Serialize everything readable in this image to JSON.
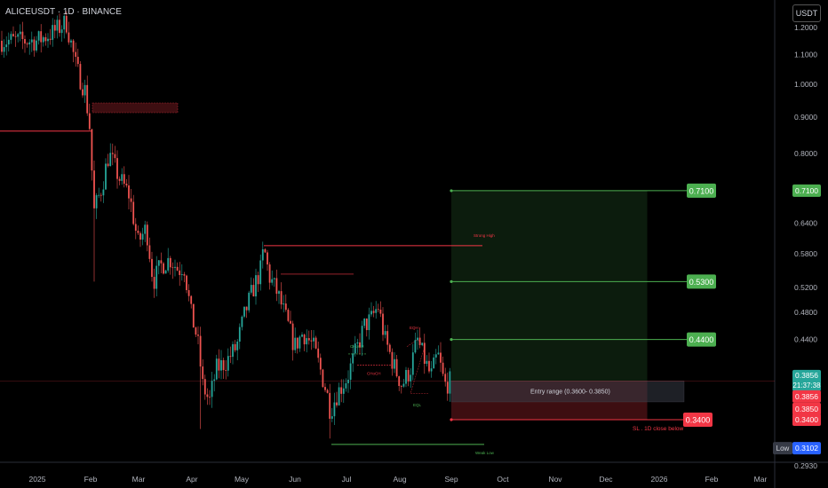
{
  "header": {
    "symbol_line": "ALICEUSDT · 1D · BINANCE",
    "currency_button": "USDT"
  },
  "chart_data": {
    "type": "candlestick",
    "symbol": "ALICEUSDT",
    "interval": "1D",
    "exchange": "BINANCE",
    "y_axis": {
      "scale": "log",
      "range": [
        0.293,
        1.25
      ],
      "ticks": [
        "1.2000",
        "1.1000",
        "1.0000",
        "0.9000",
        "0.8000",
        "0.7100",
        "0.6400",
        "0.5800",
        "0.5200",
        "0.4800",
        "0.4400",
        "0.3850",
        "0.3400",
        "0.3102",
        "0.2930"
      ]
    },
    "x_axis": {
      "labels": [
        "2025",
        "Feb",
        "Mar",
        "Apr",
        "May",
        "Jun",
        "Jul",
        "Aug",
        "Sep",
        "Oct",
        "Nov",
        "Dec",
        "2026",
        "Feb",
        "Mar"
      ]
    },
    "price_path": [
      [
        "2025-01-01",
        1.15
      ],
      [
        "2025-01-10",
        1.18
      ],
      [
        "2025-01-18",
        1.22
      ],
      [
        "2025-01-24",
        1.05
      ],
      [
        "2025-01-29",
        0.98
      ],
      [
        "2025-02-01",
        0.86
      ],
      [
        "2025-02-03",
        0.66
      ],
      [
        "2025-02-08",
        0.72
      ],
      [
        "2025-02-12",
        0.8
      ],
      [
        "2025-02-18",
        0.74
      ],
      [
        "2025-02-24",
        0.7
      ],
      [
        "2025-03-01",
        0.6
      ],
      [
        "2025-03-06",
        0.63
      ],
      [
        "2025-03-10",
        0.53
      ],
      [
        "2025-03-15",
        0.56
      ],
      [
        "2025-03-20",
        0.57
      ],
      [
        "2025-03-25",
        0.55
      ],
      [
        "2025-03-28",
        0.56
      ],
      [
        "2025-04-01",
        0.48
      ],
      [
        "2025-04-05",
        0.44
      ],
      [
        "2025-04-08",
        0.38
      ],
      [
        "2025-04-12",
        0.36
      ],
      [
        "2025-04-16",
        0.4
      ],
      [
        "2025-04-22",
        0.41
      ],
      [
        "2025-04-28",
        0.43
      ],
      [
        "2025-05-03",
        0.48
      ],
      [
        "2025-05-08",
        0.52
      ],
      [
        "2025-05-12",
        0.55
      ],
      [
        "2025-05-14",
        0.59
      ],
      [
        "2025-05-17",
        0.54
      ],
      [
        "2025-05-22",
        0.51
      ],
      [
        "2025-05-27",
        0.47
      ],
      [
        "2025-06-01",
        0.43
      ],
      [
        "2025-06-06",
        0.45
      ],
      [
        "2025-06-12",
        0.43
      ],
      [
        "2025-06-16",
        0.4
      ],
      [
        "2025-06-20",
        0.37
      ],
      [
        "2025-06-22",
        0.35
      ],
      [
        "2025-06-26",
        0.37
      ],
      [
        "2025-07-02",
        0.39
      ],
      [
        "2025-07-08",
        0.43
      ],
      [
        "2025-07-12",
        0.46
      ],
      [
        "2025-07-16",
        0.47
      ],
      [
        "2025-07-20",
        0.49
      ],
      [
        "2025-07-24",
        0.44
      ],
      [
        "2025-07-30",
        0.4
      ],
      [
        "2025-08-03",
        0.38
      ],
      [
        "2025-08-08",
        0.4
      ],
      [
        "2025-08-12",
        0.44
      ],
      [
        "2025-08-15",
        0.42
      ],
      [
        "2025-08-20",
        0.39
      ],
      [
        "2025-08-24",
        0.42
      ],
      [
        "2025-08-28",
        0.38
      ],
      [
        "2025-09-01",
        0.3856
      ]
    ],
    "wick_extremes": [
      [
        "2025-02-03",
        0.53
      ],
      [
        "2025-04-07",
        0.33
      ],
      [
        "2025-06-22",
        0.32
      ]
    ],
    "current_price": {
      "value": "0.3856",
      "countdown": "21:37:38"
    },
    "low": {
      "label": "Low",
      "value": "0.3102"
    },
    "levels": [
      {
        "price": 0.71,
        "label": "0.7100",
        "kind": "target"
      },
      {
        "price": 0.53,
        "label": "0.5300",
        "kind": "target"
      },
      {
        "price": 0.44,
        "label": "0.4400",
        "kind": "target"
      },
      {
        "price": 0.385,
        "label": "0.3850",
        "kind": "entry"
      },
      {
        "price": 0.34,
        "label": "0.3400",
        "kind": "stop"
      }
    ],
    "position": {
      "entry_low": 0.36,
      "entry_high": 0.385,
      "stop": 0.34,
      "target": 0.71,
      "start": "2025-09-01",
      "end": "2025-12-25"
    },
    "annotations": {
      "entry_range": "Entry range    (0.3600- 0.3850)",
      "sl_note": "SL . 1D close below",
      "strong_high": "Strong High",
      "weak_low": "Weak Low",
      "choch1": "CHoCH",
      "choch2": "CHoCH",
      "eqh": "EQH",
      "eql": "EQL"
    },
    "colors": {
      "up": "#26a69a",
      "down": "#ef5350",
      "target": "#4caf50",
      "stop": "#f23645",
      "label_bg": "#363a45"
    }
  }
}
